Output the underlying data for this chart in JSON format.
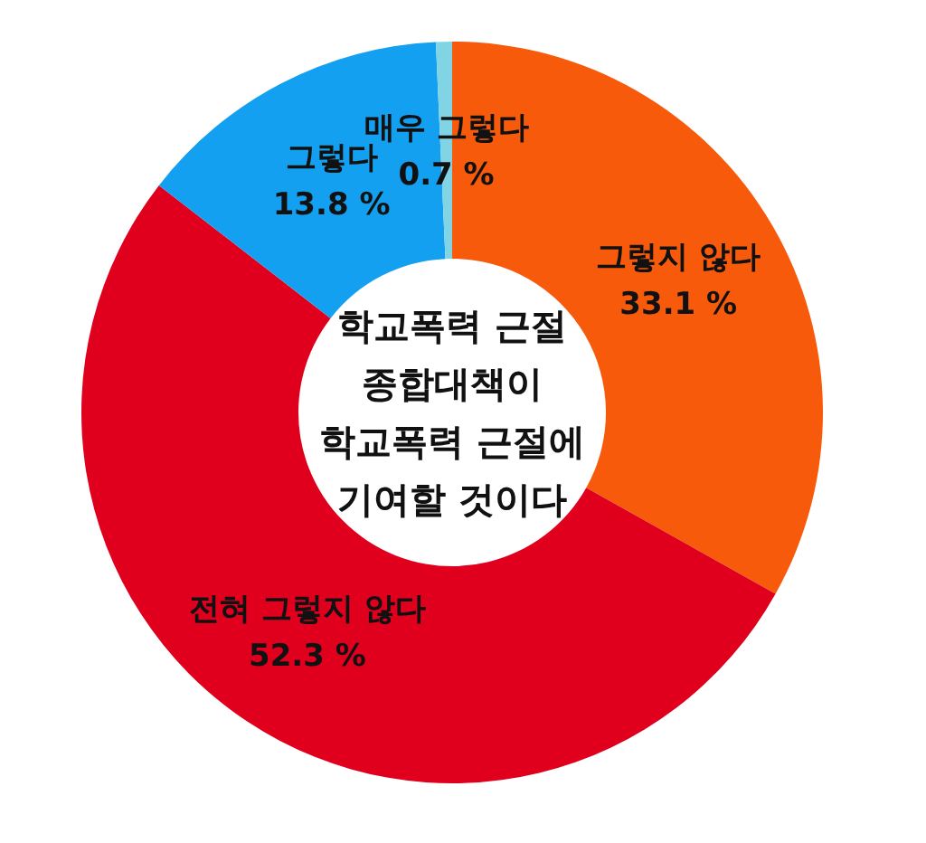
{
  "chart_data": {
    "type": "donut",
    "title": "학교폭력 근절 종합대책이 학교폭력 근절에 기여할 것이다",
    "categories": [
      "그렇지 않다",
      "전혀 그렇지 않다",
      "그렇다",
      "매우 그렇다"
    ],
    "values": [
      33.1,
      52.3,
      13.8,
      0.7
    ],
    "colors": [
      "#f85a0c",
      "#e0001e",
      "#14a0f0",
      "#80d4e4"
    ],
    "value_labels": [
      "33.1 %",
      "52.3 %",
      "13.8 %",
      "0.7 %"
    ],
    "legend": false
  }
}
